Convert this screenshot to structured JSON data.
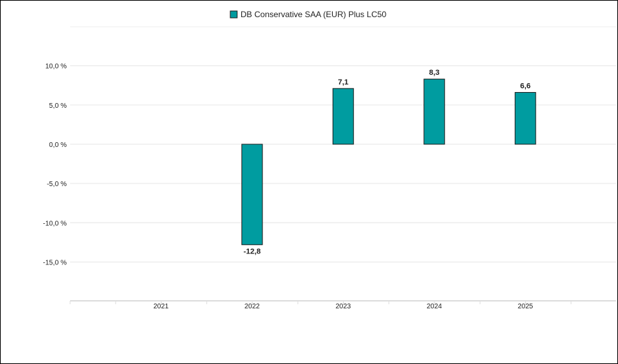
{
  "chart_data": {
    "type": "bar",
    "legend": {
      "label": "DB Conservative SAA (EUR) Plus LC50",
      "position": "top-center"
    },
    "categories": [
      "2021",
      "2022",
      "2023",
      "2024",
      "2025"
    ],
    "series": [
      {
        "name": "DB Conservative SAA (EUR) Plus LC50",
        "values": [
          null,
          -12.8,
          7.1,
          8.3,
          6.6
        ],
        "labels": [
          "",
          "-12,8",
          "7,1",
          "8,3",
          "6,6"
        ]
      }
    ],
    "yticks": [
      10,
      5,
      0,
      -5,
      -10,
      -15
    ],
    "ytick_labels": [
      "10,0 %",
      "5,0 %",
      "0,0 %",
      "-5,0 %",
      "-10,0 %",
      "-15,0 %"
    ],
    "ylim": [
      -20,
      15
    ],
    "grid": true,
    "colors": {
      "bar": "#009ca0",
      "bar_stroke": "#1a1a1a",
      "grid": "#e6e6e6",
      "axis": "#dddddd"
    }
  }
}
